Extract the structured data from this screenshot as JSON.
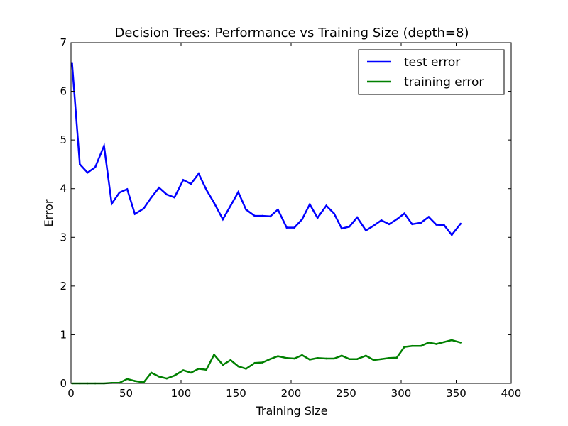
{
  "chart_data": {
    "type": "line",
    "title": "Decision Trees: Performance vs Training Size (depth=8)",
    "xlabel": "Training Size",
    "ylabel": "Error",
    "xlim": [
      0,
      400
    ],
    "ylim": [
      0,
      7
    ],
    "xticks": [
      0,
      50,
      100,
      150,
      200,
      250,
      300,
      350,
      400
    ],
    "yticks": [
      0,
      1,
      2,
      3,
      4,
      5,
      6,
      7
    ],
    "grid": false,
    "legend_position": "top-right",
    "series": [
      {
        "name": "test error",
        "color": "#0000ff",
        "points": [
          [
            1,
            6.57
          ],
          [
            8,
            4.5
          ],
          [
            15,
            4.33
          ],
          [
            22,
            4.44
          ],
          [
            30,
            4.88
          ],
          [
            37,
            3.69
          ],
          [
            44,
            3.92
          ],
          [
            51,
            3.99
          ],
          [
            58,
            3.48
          ],
          [
            66,
            3.59
          ],
          [
            73,
            3.82
          ],
          [
            80,
            4.02
          ],
          [
            87,
            3.88
          ],
          [
            94,
            3.82
          ],
          [
            102,
            4.18
          ],
          [
            109,
            4.1
          ],
          [
            116,
            4.31
          ],
          [
            123,
            3.98
          ],
          [
            130,
            3.71
          ],
          [
            138,
            3.37
          ],
          [
            145,
            3.65
          ],
          [
            152,
            3.93
          ],
          [
            159,
            3.57
          ],
          [
            167,
            3.44
          ],
          [
            174,
            3.44
          ],
          [
            181,
            3.43
          ],
          [
            188,
            3.57
          ],
          [
            196,
            3.2
          ],
          [
            203,
            3.2
          ],
          [
            210,
            3.37
          ],
          [
            217,
            3.68
          ],
          [
            224,
            3.4
          ],
          [
            232,
            3.65
          ],
          [
            239,
            3.49
          ],
          [
            246,
            3.18
          ],
          [
            253,
            3.22
          ],
          [
            260,
            3.41
          ],
          [
            268,
            3.14
          ],
          [
            275,
            3.24
          ],
          [
            282,
            3.35
          ],
          [
            289,
            3.27
          ],
          [
            296,
            3.37
          ],
          [
            303,
            3.49
          ],
          [
            310,
            3.27
          ],
          [
            318,
            3.3
          ],
          [
            325,
            3.42
          ],
          [
            332,
            3.26
          ],
          [
            339,
            3.25
          ],
          [
            346,
            3.05
          ],
          [
            354,
            3.28
          ]
        ]
      },
      {
        "name": "training error",
        "color": "#008000",
        "points": [
          [
            1,
            0.0
          ],
          [
            8,
            0.0
          ],
          [
            15,
            0.0
          ],
          [
            22,
            0.0
          ],
          [
            30,
            0.0
          ],
          [
            37,
            0.01
          ],
          [
            44,
            0.01
          ],
          [
            51,
            0.09
          ],
          [
            58,
            0.05
          ],
          [
            66,
            0.02
          ],
          [
            73,
            0.22
          ],
          [
            80,
            0.14
          ],
          [
            87,
            0.1
          ],
          [
            94,
            0.16
          ],
          [
            102,
            0.27
          ],
          [
            109,
            0.22
          ],
          [
            116,
            0.3
          ],
          [
            123,
            0.28
          ],
          [
            130,
            0.59
          ],
          [
            138,
            0.38
          ],
          [
            145,
            0.48
          ],
          [
            152,
            0.35
          ],
          [
            159,
            0.3
          ],
          [
            167,
            0.42
          ],
          [
            174,
            0.43
          ],
          [
            181,
            0.5
          ],
          [
            188,
            0.56
          ],
          [
            196,
            0.52
          ],
          [
            203,
            0.51
          ],
          [
            210,
            0.58
          ],
          [
            217,
            0.49
          ],
          [
            224,
            0.52
          ],
          [
            232,
            0.51
          ],
          [
            239,
            0.51
          ],
          [
            246,
            0.57
          ],
          [
            253,
            0.5
          ],
          [
            260,
            0.5
          ],
          [
            268,
            0.57
          ],
          [
            275,
            0.48
          ],
          [
            282,
            0.5
          ],
          [
            289,
            0.52
          ],
          [
            296,
            0.53
          ],
          [
            303,
            0.75
          ],
          [
            310,
            0.77
          ],
          [
            318,
            0.77
          ],
          [
            325,
            0.84
          ],
          [
            332,
            0.81
          ],
          [
            339,
            0.85
          ],
          [
            346,
            0.89
          ],
          [
            354,
            0.84
          ]
        ]
      }
    ]
  }
}
